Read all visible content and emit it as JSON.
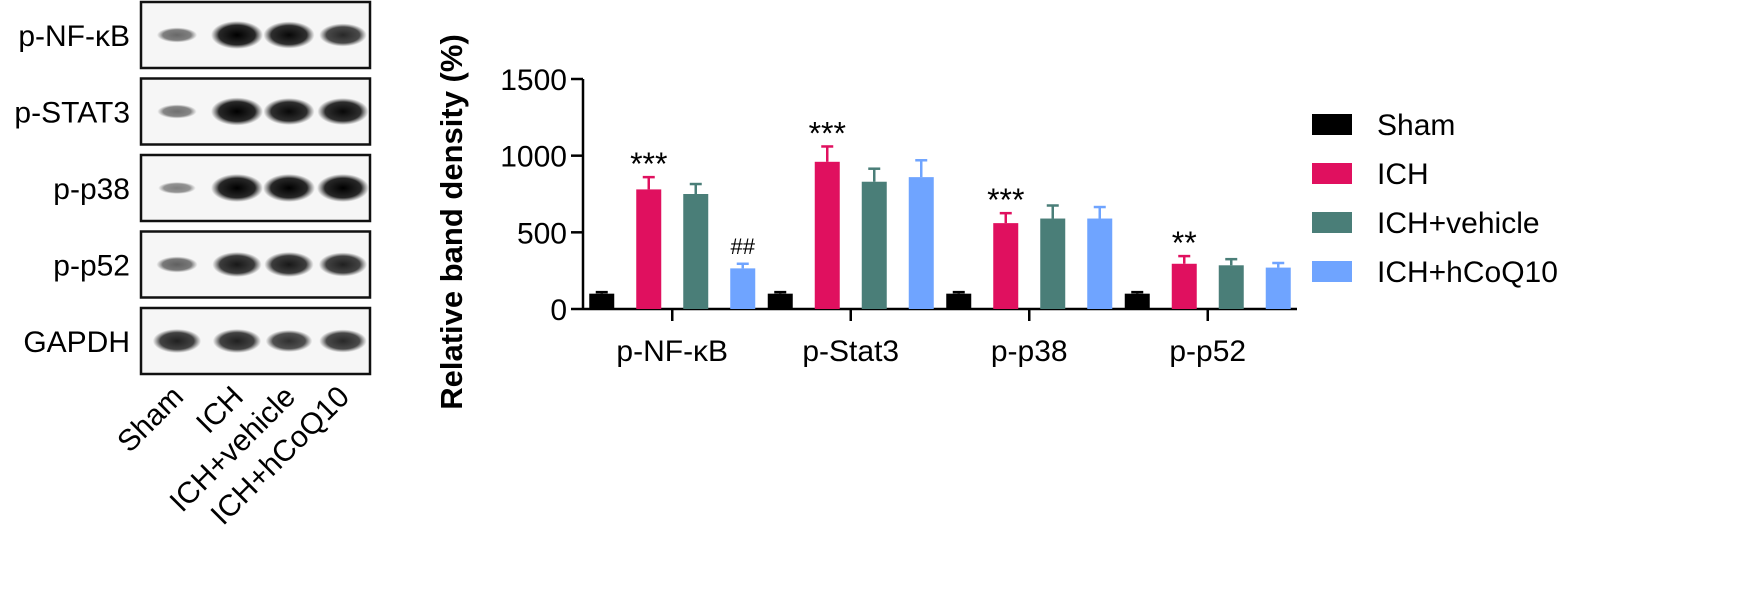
{
  "blot": {
    "proteins": [
      "p-NF-κB",
      "p-STAT3",
      "p-p38",
      "p-p52",
      "GAPDH"
    ],
    "lanes": [
      "Sham",
      "ICH",
      "ICH+vehicle",
      "ICH+hCoQ10"
    ],
    "band_intensity": [
      [
        0.35,
        1.0,
        0.95,
        0.75
      ],
      [
        0.3,
        1.0,
        0.95,
        0.95
      ],
      [
        0.2,
        1.0,
        1.0,
        1.0
      ],
      [
        0.4,
        0.85,
        0.85,
        0.8
      ],
      [
        0.8,
        0.8,
        0.7,
        0.75
      ]
    ]
  },
  "chart_data": {
    "type": "bar",
    "title": "",
    "xlabel": "",
    "ylabel": "Relative band density (%)",
    "ylim": [
      0,
      1500
    ],
    "yticks": [
      0,
      500,
      1000,
      1500
    ],
    "categories": [
      "p-NF-κB",
      "p-Stat3",
      "p-p38",
      "p-p52"
    ],
    "series": [
      {
        "name": "Sham",
        "color": "#000000",
        "values": [
          100,
          100,
          100,
          100
        ],
        "errors": [
          10,
          10,
          10,
          10
        ]
      },
      {
        "name": "ICH",
        "color": "#e0105f",
        "values": [
          780,
          960,
          560,
          295
        ],
        "errors": [
          80,
          100,
          65,
          50
        ]
      },
      {
        "name": "ICH+vehicle",
        "color": "#4a7e78",
        "values": [
          750,
          830,
          590,
          285
        ],
        "errors": [
          65,
          85,
          85,
          40
        ]
      },
      {
        "name": "ICH+hCoQ10",
        "color": "#6fa4ff",
        "values": [
          265,
          860,
          590,
          270
        ],
        "errors": [
          30,
          110,
          75,
          30
        ]
      }
    ],
    "annotations": [
      {
        "category": 0,
        "series": 1,
        "text": "***"
      },
      {
        "category": 0,
        "series": 3,
        "text": "##"
      },
      {
        "category": 1,
        "series": 1,
        "text": "***"
      },
      {
        "category": 2,
        "series": 1,
        "text": "***"
      },
      {
        "category": 3,
        "series": 1,
        "text": "**"
      }
    ],
    "legend_position": "right",
    "grid": false
  }
}
